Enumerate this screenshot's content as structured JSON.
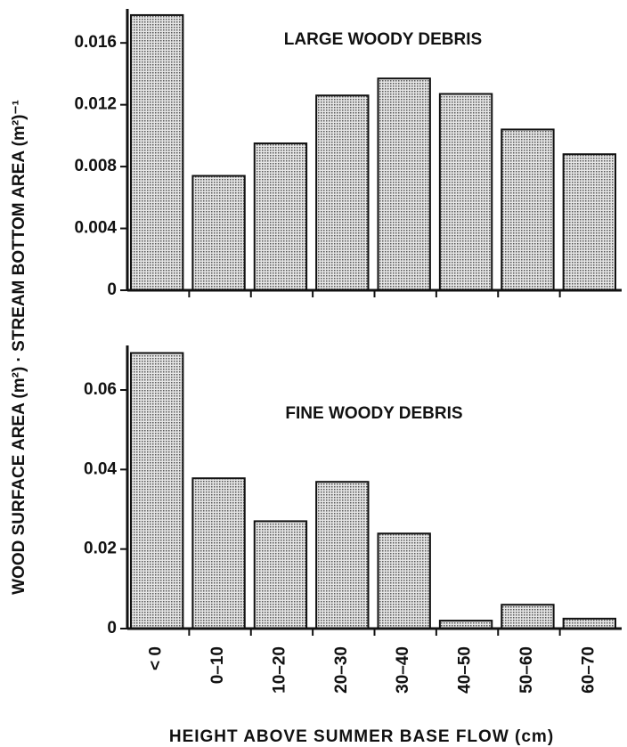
{
  "chart_data": [
    {
      "type": "bar",
      "annotation": "LARGE WOODY DEBRIS",
      "ylabel": "WOOD SURFACE AREA (m²) · STREAM BOTTOM AREA (m²)⁻¹",
      "categories": [
        null,
        null,
        null,
        null,
        null,
        null,
        null,
        null
      ],
      "values": [
        0.0178,
        0.0074,
        0.0095,
        0.0126,
        0.0137,
        0.0127,
        0.0104,
        0.0088
      ],
      "color": "#bdbdbd",
      "ylim": [
        0,
        0.0182
      ],
      "yticks": [
        0,
        0.004,
        0.008,
        0.012,
        0.016
      ]
    },
    {
      "type": "bar",
      "annotation": "FINE WOODY DEBRIS",
      "xlabel": "HEIGHT ABOVE SUMMER BASE FLOW (cm)",
      "categories": [
        "< 0",
        "0–10",
        "10–20",
        "20–30",
        "30–40",
        "40–50",
        "50–60",
        "60–70"
      ],
      "values": [
        0.0693,
        0.0378,
        0.027,
        0.0369,
        0.0239,
        0.002,
        0.006,
        0.0025
      ],
      "color": "#bdbdbd",
      "ylim": [
        0,
        0.0712
      ],
      "yticks": [
        0,
        0.02,
        0.04,
        0.06
      ]
    }
  ]
}
